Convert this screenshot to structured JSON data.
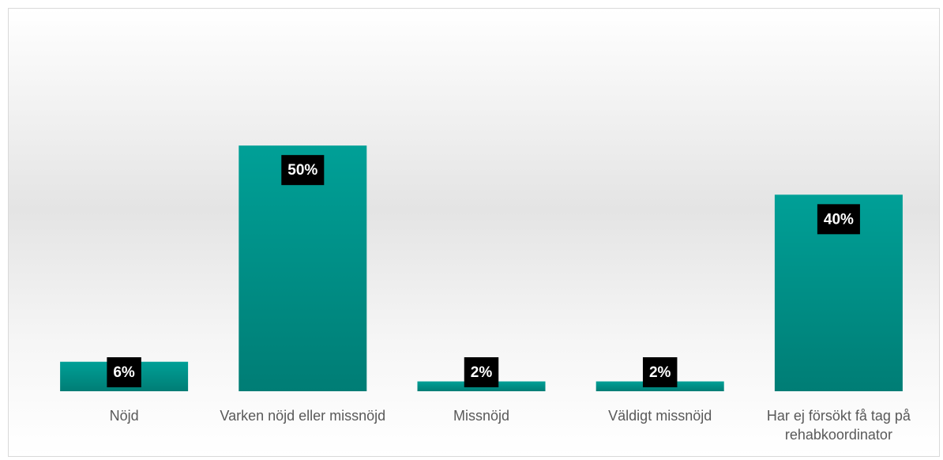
{
  "chart_data": {
    "type": "bar",
    "categories": [
      "Nöjd",
      "Varken nöjd eller missnöjd",
      "Missnöjd",
      "Väldigt missnöjd",
      "Har ej försökt få tag på rehabkoordinator"
    ],
    "values": [
      6,
      50,
      2,
      2,
      40
    ],
    "value_labels": [
      "6%",
      "50%",
      "2%",
      "2%",
      "40%"
    ],
    "color": "#00958d",
    "ylim": [
      0,
      60
    ]
  }
}
